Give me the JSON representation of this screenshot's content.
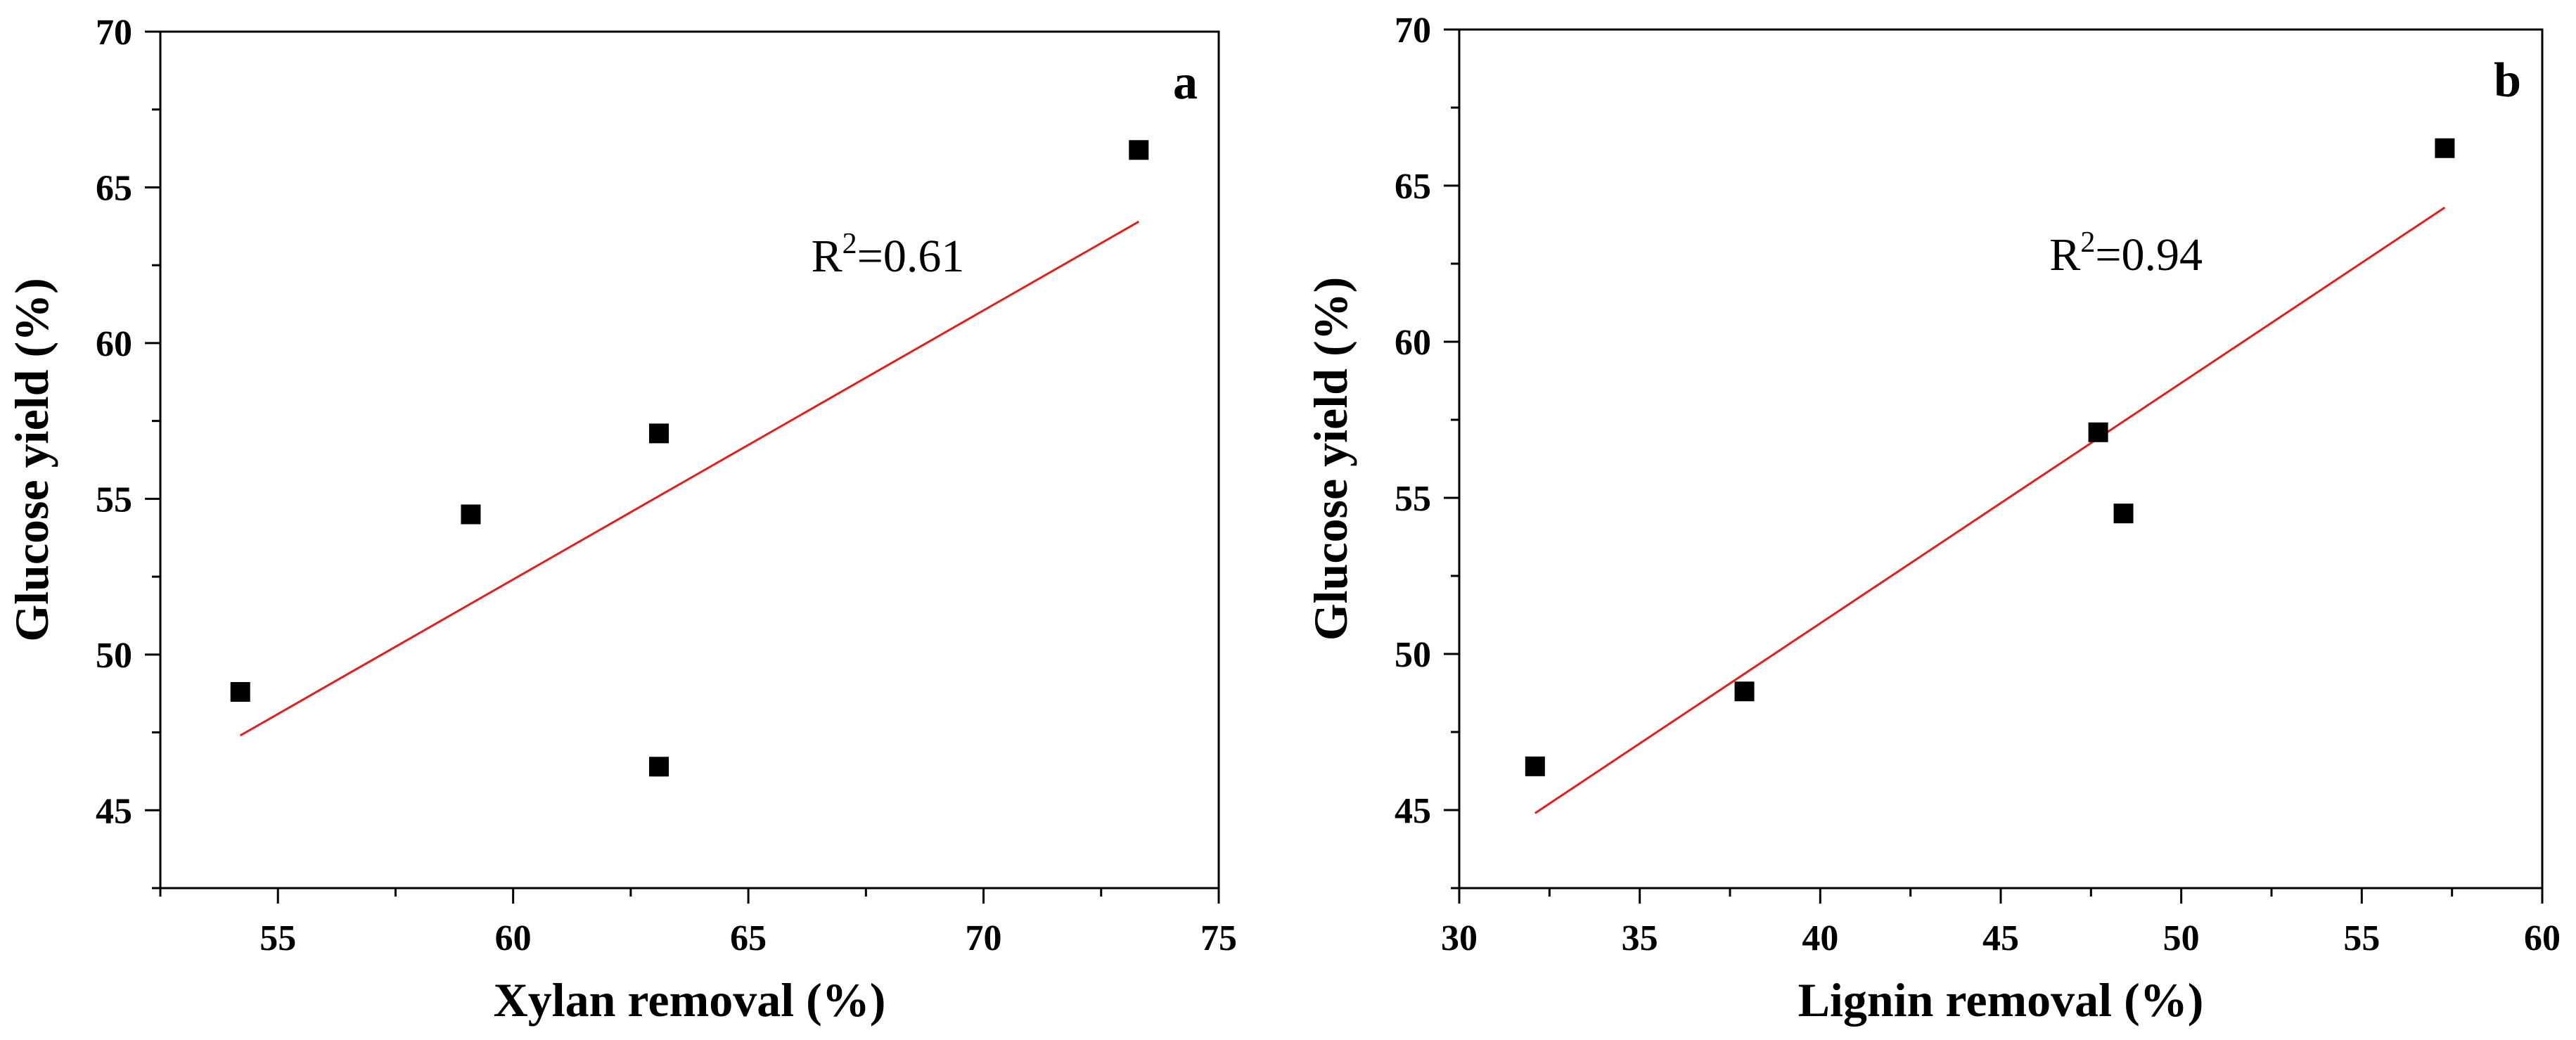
{
  "chart_data": [
    {
      "type": "scatter",
      "panel_label": "a",
      "xlabel": "Xylan removal (%)",
      "ylabel": "Glucose yield (%)",
      "xlim": [
        52.5,
        75
      ],
      "ylim": [
        42.5,
        70
      ],
      "xticks": [
        55,
        60,
        65,
        70,
        75
      ],
      "yticks": [
        45,
        50,
        55,
        60,
        65,
        70
      ],
      "x_tick_labels": [
        "55",
        "60",
        "65",
        "70",
        "75"
      ],
      "y_tick_labels": [
        "45",
        "50",
        "55",
        "60",
        "65",
        "70"
      ],
      "series": [
        {
          "x": [
            54.2,
            59.1,
            63.1,
            63.1,
            73.3
          ],
          "y": [
            48.8,
            54.5,
            57.1,
            46.4,
            66.2
          ]
        }
      ],
      "fit_line": {
        "x": [
          54.2,
          73.3
        ],
        "y": [
          47.4,
          63.9
        ],
        "color": "#e0201c"
      },
      "annotation": {
        "base": "R",
        "sup": "2",
        "rest": "=0.61"
      },
      "marker_color": "#000000",
      "grid": false
    },
    {
      "type": "scatter",
      "panel_label": "b",
      "xlabel": "Lignin removal (%)",
      "ylabel": "Glucose yield (%)",
      "xlim": [
        30,
        60
      ],
      "ylim": [
        42.5,
        70
      ],
      "xticks": [
        30,
        35,
        40,
        45,
        50,
        55,
        60
      ],
      "yticks": [
        45,
        50,
        55,
        60,
        65,
        70
      ],
      "x_tick_labels": [
        "30",
        "35",
        "40",
        "45",
        "50",
        "55",
        "60"
      ],
      "y_tick_labels": [
        "45",
        "50",
        "55",
        "60",
        "65",
        "70"
      ],
      "series": [
        {
          "x": [
            32.1,
            37.9,
            47.7,
            48.4,
            57.3
          ],
          "y": [
            46.4,
            48.8,
            57.1,
            54.5,
            66.2
          ]
        }
      ],
      "fit_line": {
        "x": [
          32.1,
          57.3
        ],
        "y": [
          44.9,
          64.3
        ],
        "color": "#e0201c"
      },
      "annotation": {
        "base": "R",
        "sup": "2",
        "rest": "=0.94"
      },
      "marker_color": "#000000",
      "grid": false
    }
  ]
}
